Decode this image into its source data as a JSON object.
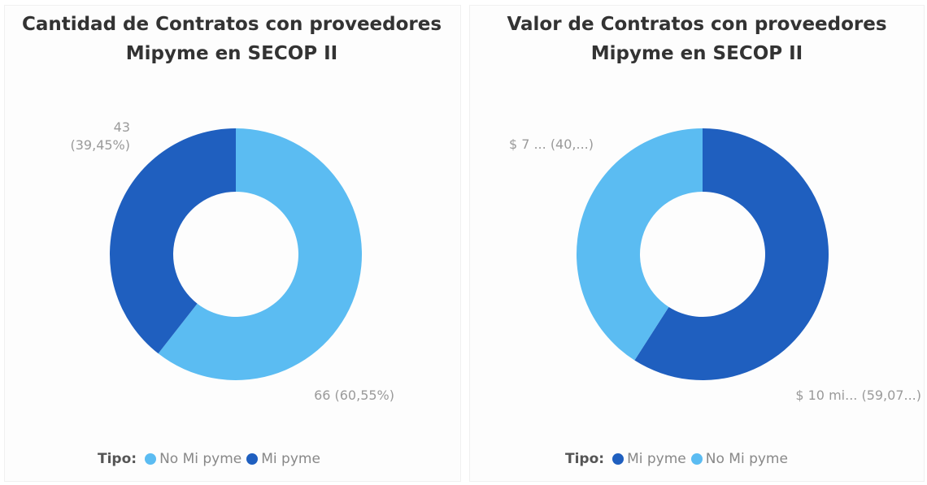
{
  "chart_data": [
    {
      "type": "pie",
      "title": "Cantidad de Contratos con proveedores Mipyme en SECOP II",
      "legend_title": "Tipo:",
      "categories": [
        "No Mi pyme",
        "Mi pyme"
      ],
      "values": [
        66,
        43
      ],
      "value_labels": [
        "66 (60,55%)",
        "43\n(39,45%)"
      ],
      "colors": [
        "#5bbcf2",
        "#1f5fbf"
      ],
      "donut": true
    },
    {
      "type": "pie",
      "title": "Valor de Contratos con proveedores Mipyme en SECOP II",
      "legend_title": "Tipo:",
      "categories": [
        "Mi pyme",
        "No Mi pyme"
      ],
      "values": [
        59.07,
        40.93
      ],
      "value_labels": [
        "$ 10 mi... (59,07...)",
        "$ 7 ... (40,...)"
      ],
      "colors": [
        "#1f5fbf",
        "#5bbcf2"
      ],
      "donut": true
    }
  ]
}
